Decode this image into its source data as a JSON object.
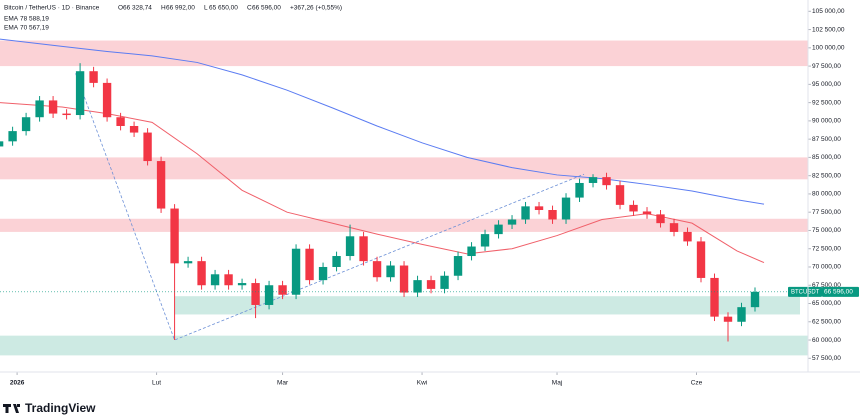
{
  "chart_data": {
    "type": "candlestick",
    "symbol": "Bitcoin / TetherUS · 1D · Binance",
    "ohlc_header": [
      {
        "label": "O",
        "value": "66 328,74"
      },
      {
        "label": "H",
        "value": "66 992,00"
      },
      {
        "label": "L",
        "value": "65 650,00"
      },
      {
        "label": "C",
        "value": "66 596,00"
      }
    ],
    "change": "+367,26 (+0,55%)",
    "x": [
      -4,
      -1,
      2,
      5,
      8,
      11,
      14,
      17,
      20,
      23,
      26,
      29,
      32,
      35,
      38,
      41,
      44,
      47,
      50,
      53,
      56,
      59,
      62,
      65,
      68,
      71,
      74,
      77,
      80,
      83,
      86,
      89,
      92,
      95,
      98,
      101,
      104,
      107,
      110,
      113,
      116,
      119,
      122,
      125,
      128,
      131,
      134,
      137,
      140,
      143,
      146,
      149,
      152,
      155,
      158,
      161,
      164
    ],
    "open": [
      86500,
      87200,
      88600,
      90500,
      92800,
      91000,
      90800,
      96800,
      95200,
      90500,
      89300,
      88400,
      84500,
      78000,
      70500,
      70800,
      67500,
      69000,
      67500,
      67800,
      64800,
      67500,
      66200,
      72500,
      68200,
      70000,
      71500,
      74200,
      70800,
      68600,
      70200,
      66500,
      68200,
      67000,
      68800,
      71500,
      72800,
      74500,
      75800,
      76500,
      78300,
      77800,
      76500,
      79500,
      81500,
      82300,
      81200,
      78500,
      77600,
      77200,
      76000,
      74800,
      73500,
      68500,
      63200,
      62500,
      64500
    ],
    "high": [
      87800,
      89200,
      91100,
      93400,
      93400,
      91600,
      97900,
      97400,
      95800,
      91100,
      89900,
      89000,
      85100,
      78600,
      71400,
      71400,
      69600,
      69600,
      68400,
      68400,
      68100,
      68100,
      73100,
      73100,
      70600,
      72100,
      75800,
      74800,
      71400,
      70800,
      70800,
      68800,
      68800,
      69400,
      72100,
      73400,
      75100,
      76400,
      77100,
      78900,
      78900,
      78400,
      80100,
      82100,
      82700,
      82900,
      81800,
      79100,
      78200,
      77800,
      76600,
      75400,
      74100,
      69100,
      63800,
      65100,
      67200
    ],
    "low": [
      85900,
      86600,
      88000,
      89900,
      90400,
      90200,
      90200,
      94600,
      89900,
      88700,
      87800,
      83900,
      77400,
      60000,
      69900,
      66900,
      66900,
      66900,
      66900,
      63000,
      64200,
      65600,
      65600,
      67600,
      67600,
      69400,
      70900,
      70200,
      68000,
      68000,
      65900,
      65900,
      66400,
      66400,
      68200,
      70900,
      72200,
      73900,
      75200,
      75900,
      77200,
      75900,
      75900,
      78900,
      80900,
      80600,
      77900,
      77000,
      76600,
      75400,
      74200,
      72900,
      67900,
      62600,
      59800,
      61900,
      63900
    ],
    "close": [
      87200,
      88600,
      90500,
      92800,
      91000,
      90800,
      96800,
      95200,
      90500,
      89300,
      88400,
      84500,
      78000,
      70500,
      70800,
      67500,
      69000,
      67500,
      67800,
      64800,
      67500,
      66200,
      72500,
      68200,
      70000,
      71500,
      74200,
      70800,
      68600,
      70200,
      66500,
      68200,
      67000,
      68800,
      71500,
      72800,
      74500,
      75800,
      76500,
      78300,
      77800,
      76500,
      79500,
      81500,
      82300,
      81200,
      78500,
      77600,
      77200,
      76000,
      74800,
      73500,
      68500,
      63200,
      62500,
      64500,
      66596
    ],
    "up_color": "#089981",
    "down_color": "#f23645",
    "indicators": [
      {
        "name": "EMA",
        "value_label": "78 588,19",
        "color": "#5b7cf2",
        "x": [
          -4,
          10,
          20,
          30,
          40,
          50,
          60,
          70,
          80,
          90,
          100,
          110,
          120,
          130,
          140,
          150,
          160,
          166
        ],
        "values": [
          101200,
          100200,
          99500,
          98900,
          98000,
          96300,
          94200,
          91800,
          89300,
          87000,
          85000,
          83600,
          82600,
          82100,
          81300,
          80400,
          79200,
          78600
        ]
      },
      {
        "name": "EMA",
        "value_label": "70 567,19",
        "color": "#f0606a",
        "x": [
          -4,
          10,
          20,
          30,
          40,
          50,
          60,
          70,
          80,
          90,
          100,
          110,
          120,
          130,
          140,
          150,
          160,
          166
        ],
        "values": [
          92500,
          91900,
          91000,
          89800,
          85500,
          80500,
          77500,
          76000,
          74500,
          73100,
          71800,
          72500,
          74300,
          76500,
          77300,
          76000,
          72200,
          70600
        ]
      }
    ],
    "trendline": {
      "color": "#6b8fd6",
      "x": [
        13,
        35,
        126
      ],
      "values": [
        96500,
        60000,
        82700
      ]
    },
    "zones": [
      {
        "ylim": [
          97500,
          101000
        ],
        "color": "#fbd2d6"
      },
      {
        "ylim": [
          82000,
          85000
        ],
        "color": "#fbd2d6"
      },
      {
        "ylim": [
          74800,
          76600
        ],
        "color": "#fbd2d6"
      },
      {
        "ylim": [
          63500,
          66000
        ],
        "x_start": 35,
        "color": "#cdeae3"
      },
      {
        "ylim": [
          57900,
          60600
        ],
        "color": "#cdeae3"
      }
    ],
    "last_price": {
      "name": "BTCUSDT",
      "value": 66596,
      "label": "66 596,00",
      "color": "#089981"
    },
    "xlim": [
      -3.8,
      174
    ],
    "ylim": [
      56500,
      106000
    ],
    "xticks": [
      {
        "value": 0,
        "label": "2026"
      },
      {
        "value": 31,
        "label": "Lut"
      },
      {
        "value": 59,
        "label": "Mar"
      },
      {
        "value": 90,
        "label": "Kwi"
      },
      {
        "value": 120,
        "label": "Maj"
      },
      {
        "value": 151,
        "label": "Cze"
      }
    ],
    "yticks": [
      {
        "value": 57500,
        "label": "57 500,00"
      },
      {
        "value": 60000,
        "label": "60 000,00"
      },
      {
        "value": 62500,
        "label": "62 500,00"
      },
      {
        "value": 65000,
        "label": "65 000,00"
      },
      {
        "value": 67500,
        "label": "67 500,00"
      },
      {
        "value": 70000,
        "label": "70 000,00"
      },
      {
        "value": 72500,
        "label": "72 500,00"
      },
      {
        "value": 75000,
        "label": "75 000,00"
      },
      {
        "value": 77500,
        "label": "77 500,00"
      },
      {
        "value": 80000,
        "label": "80 000,00"
      },
      {
        "value": 82500,
        "label": "82 500,00"
      },
      {
        "value": 85000,
        "label": "85 000,00"
      },
      {
        "value": 87500,
        "label": "87 500,00"
      },
      {
        "value": 90000,
        "label": "90 000,00"
      },
      {
        "value": 92500,
        "label": "92 500,00"
      },
      {
        "value": 95000,
        "label": "95 000,00"
      },
      {
        "value": 97500,
        "label": "97 500,00"
      },
      {
        "value": 100000,
        "label": "100 000,00"
      },
      {
        "value": 102500,
        "label": "102 500,00"
      },
      {
        "value": 105000,
        "label": "105 000,00"
      }
    ],
    "branding": "TradingView"
  }
}
